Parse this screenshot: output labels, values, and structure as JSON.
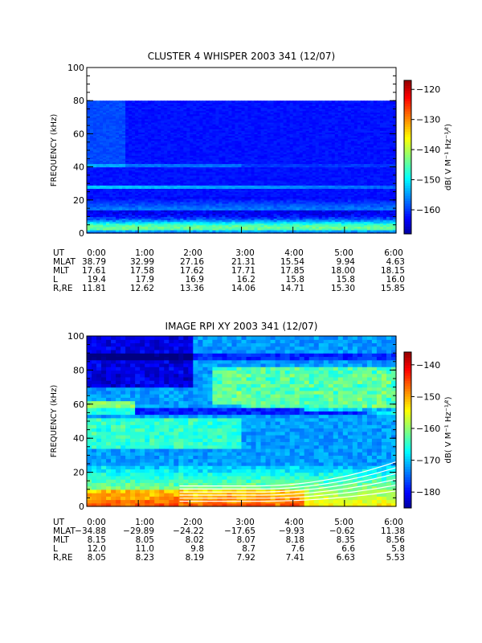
{
  "chart_data": [
    {
      "type": "heatmap",
      "title": "CLUSTER 4 WHISPER 2003 341 (12/07)",
      "ylabel": "FREQUENCY (kHz)",
      "ylim": [
        0,
        100
      ],
      "yticks": [
        "0",
        "20",
        "40",
        "60",
        "80",
        "100"
      ],
      "xlim": [
        "0:00",
        "6:00"
      ],
      "data_top_khz": 80,
      "colorbar": {
        "label": "dB( V M⁻¹ Hz⁻¹⁄²)",
        "range": [
          -168,
          -117
        ],
        "ticks": [
          "-120",
          "-130",
          "-140",
          "-150",
          "-160"
        ],
        "tick_values": [
          -120,
          -130,
          -140,
          -150,
          -160
        ]
      },
      "features": {
        "background_level_db": -161,
        "low_freq_emission": "strong band below ~12 kHz with peaks near 3 kHz",
        "narrow_line_khz": 28,
        "secondary_line_khz": 41
      },
      "ephemeris": {
        "labels": [
          "UT",
          "MLAT",
          "MLT",
          "L",
          "R,RE"
        ],
        "times": [
          "0:00",
          "1:00",
          "2:00",
          "3:00",
          "4:00",
          "5:00",
          "6:00"
        ],
        "rows": [
          [
            "38.79",
            "32.99",
            "27.16",
            "21.31",
            "15.54",
            "9.94",
            "4.63"
          ],
          [
            "17.61",
            "17.58",
            "17.62",
            "17.71",
            "17.85",
            "18.00",
            "18.15"
          ],
          [
            "19.4",
            "17.9",
            "16.9",
            "16.2",
            "15.8",
            "15.8",
            "16.0"
          ],
          [
            "11.81",
            "12.62",
            "13.36",
            "14.06",
            "14.71",
            "15.30",
            "15.85"
          ]
        ]
      }
    },
    {
      "type": "heatmap",
      "title": "IMAGE RPI XY 2003 341 (12/07)",
      "ylabel": "FREQUENCY (kHz)",
      "ylim": [
        0,
        100
      ],
      "yticks": [
        "0",
        "20",
        "40",
        "60",
        "80",
        "100"
      ],
      "xlim": [
        "0:00",
        "6:00"
      ],
      "data_top_khz": 100,
      "colorbar": {
        "label": "dB( V M⁻¹ Hz⁻¹⁄²)",
        "range": [
          -185,
          -136
        ],
        "ticks": [
          "-140",
          "-150",
          "-160",
          "-170",
          "-180"
        ],
        "tick_values": [
          -140,
          -150,
          -160,
          -170,
          -180
        ]
      },
      "features": {
        "background_level_db": -170,
        "low_freq_emission": "intense broadband below ~25 kHz",
        "rising_band": "enhanced emission 55-80 kHz after 2:30 UT",
        "upper_hybrid_lines": "white curved traces rising after 4:30 UT"
      },
      "ephemeris": {
        "labels": [
          "UT",
          "MLAT",
          "MLT",
          "L",
          "R,RE"
        ],
        "times": [
          "0:00",
          "1:00",
          "2:00",
          "3:00",
          "4:00",
          "5:00",
          "6:00"
        ],
        "rows": [
          [
            "-34.88",
            "-29.89",
            "-24.22",
            "-17.65",
            "-9.93",
            "-0.62",
            "11.38"
          ],
          [
            "8.15",
            "8.05",
            "8.02",
            "8.07",
            "8.18",
            "8.35",
            "8.56"
          ],
          [
            "12.0",
            "11.0",
            "9.8",
            "8.7",
            "7.6",
            "6.6",
            "5.8"
          ],
          [
            "8.05",
            "8.23",
            "8.19",
            "7.92",
            "7.41",
            "6.63",
            "5.53"
          ]
        ]
      }
    }
  ]
}
